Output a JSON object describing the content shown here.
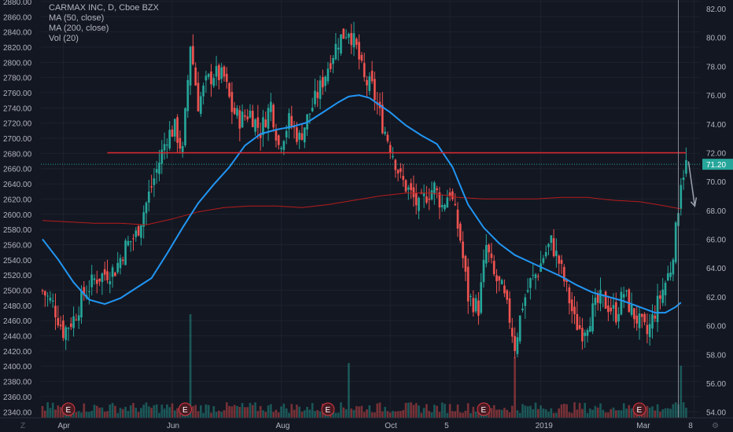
{
  "chart_data": {
    "type": "candlestick",
    "title": "CARMAX INC, D, Cboe BZX",
    "legend": [
      "MA (50, close)",
      "MA (200, close)",
      "Vol (20)"
    ],
    "left_axis": {
      "ticks": [
        "2880.00",
        "2860.00",
        "2840.00",
        "2820.00",
        "2800.00",
        "2780.00",
        "2760.00",
        "2740.00",
        "2720.00",
        "2700.00",
        "2680.00",
        "2660.00",
        "2640.00",
        "2620.00",
        "2600.00",
        "2580.00",
        "2560.00",
        "2540.00",
        "2520.00",
        "2500.00",
        "2480.00",
        "2460.00",
        "2440.00",
        "2420.00",
        "2400.00",
        "2380.00",
        "2360.00",
        "2340.00"
      ],
      "range": [
        2332,
        2882
      ]
    },
    "right_axis": {
      "ticks": [
        "82.00",
        "80.00",
        "78.00",
        "76.00",
        "74.00",
        "72.00",
        "70.00",
        "68.00",
        "66.00",
        "64.00",
        "62.00",
        "60.00",
        "58.00",
        "56.00",
        "54.00"
      ],
      "range": [
        53.6,
        82.6
      ],
      "last_price_label": "71.20",
      "last_price": 71.2
    },
    "x_axis": {
      "labels": [
        {
          "label": "Apr",
          "bar": 8
        },
        {
          "label": "Jun",
          "bar": 50
        },
        {
          "label": "Aug",
          "bar": 92
        },
        {
          "label": "Oct",
          "bar": 134
        },
        {
          "label": "5",
          "bar": 157
        },
        {
          "label": "2019",
          "bar": 192
        },
        {
          "label": "Mar",
          "bar": 231
        },
        {
          "label": "8",
          "bar": 251
        }
      ],
      "bars_shown": 252
    },
    "horizontal_line": {
      "price": 72.0,
      "color": "#e0282e"
    },
    "earnings_markers": {
      "label": "E",
      "bars": [
        10,
        55,
        110,
        170,
        230
      ]
    },
    "ohlc_close_path": [
      [
        0,
        62.4
      ],
      [
        4,
        61.5
      ],
      [
        8,
        59.6
      ],
      [
        12,
        60.5
      ],
      [
        16,
        62.2
      ],
      [
        20,
        63.2
      ],
      [
        24,
        63.6
      ],
      [
        28,
        63.9
      ],
      [
        32,
        65.5
      ],
      [
        36,
        66.3
      ],
      [
        40,
        68.5
      ],
      [
        44,
        70.8
      ],
      [
        48,
        73.2
      ],
      [
        51,
        73.7
      ],
      [
        54,
        72.0
      ],
      [
        57,
        79.6
      ],
      [
        60,
        75.4
      ],
      [
        63,
        76.8
      ],
      [
        66,
        77.5
      ],
      [
        70,
        77.2
      ],
      [
        73,
        75.0
      ],
      [
        76,
        74.3
      ],
      [
        80,
        74.8
      ],
      [
        84,
        73.5
      ],
      [
        88,
        75.4
      ],
      [
        91,
        72.5
      ],
      [
        95,
        74.2
      ],
      [
        99,
        73.0
      ],
      [
        103,
        74.8
      ],
      [
        107,
        76.5
      ],
      [
        111,
        78.5
      ],
      [
        114,
        79.8
      ],
      [
        118,
        80.6
      ],
      [
        121,
        79.2
      ],
      [
        124,
        77.0
      ],
      [
        127,
        76.5
      ],
      [
        131,
        74.0
      ],
      [
        135,
        72.0
      ],
      [
        138,
        70.2
      ],
      [
        141,
        69.4
      ],
      [
        145,
        68.2
      ],
      [
        148,
        69.1
      ],
      [
        151,
        69.6
      ],
      [
        154,
        68.3
      ],
      [
        157,
        69.4
      ],
      [
        161,
        66.0
      ],
      [
        164,
        62.0
      ],
      [
        168,
        61.2
      ],
      [
        171,
        65.5
      ],
      [
        174,
        63.4
      ],
      [
        177,
        62.5
      ],
      [
        180,
        60.5
      ],
      [
        182,
        58.6
      ],
      [
        185,
        61.5
      ],
      [
        188,
        63.0
      ],
      [
        191,
        63.8
      ],
      [
        193,
        64.8
      ],
      [
        196,
        65.8
      ],
      [
        199,
        64.4
      ],
      [
        202,
        62.5
      ],
      [
        205,
        60.3
      ],
      [
        208,
        59.6
      ],
      [
        212,
        61.0
      ],
      [
        215,
        61.8
      ],
      [
        218,
        61.4
      ],
      [
        221,
        60.8
      ],
      [
        224,
        62.3
      ],
      [
        227,
        61.0
      ],
      [
        230,
        60.2
      ],
      [
        233,
        59.4
      ],
      [
        236,
        61.0
      ],
      [
        239,
        62.5
      ],
      [
        242,
        64.0
      ],
      [
        244,
        66.5
      ],
      [
        246,
        70.2
      ],
      [
        248,
        71.2
      ]
    ],
    "ma50_path": [
      [
        0,
        66.0
      ],
      [
        6,
        64.6
      ],
      [
        12,
        63.0
      ],
      [
        18,
        61.8
      ],
      [
        24,
        61.5
      ],
      [
        30,
        61.9
      ],
      [
        36,
        62.6
      ],
      [
        42,
        63.3
      ],
      [
        48,
        65.0
      ],
      [
        54,
        66.8
      ],
      [
        60,
        68.5
      ],
      [
        66,
        69.8
      ],
      [
        72,
        71.0
      ],
      [
        78,
        72.5
      ],
      [
        84,
        73.3
      ],
      [
        90,
        73.6
      ],
      [
        96,
        73.8
      ],
      [
        102,
        74.1
      ],
      [
        108,
        74.8
      ],
      [
        114,
        75.5
      ],
      [
        118,
        75.9
      ],
      [
        122,
        76.0
      ],
      [
        126,
        75.8
      ],
      [
        130,
        75.3
      ],
      [
        134,
        74.8
      ],
      [
        140,
        73.9
      ],
      [
        146,
        73.2
      ],
      [
        152,
        72.6
      ],
      [
        158,
        71.0
      ],
      [
        164,
        68.4
      ],
      [
        170,
        66.8
      ],
      [
        176,
        65.7
      ],
      [
        182,
        64.9
      ],
      [
        188,
        64.4
      ],
      [
        194,
        63.9
      ],
      [
        200,
        63.4
      ],
      [
        206,
        62.8
      ],
      [
        212,
        62.3
      ],
      [
        218,
        62.0
      ],
      [
        224,
        61.7
      ],
      [
        230,
        61.3
      ],
      [
        236,
        60.9
      ],
      [
        240,
        60.9
      ],
      [
        244,
        61.3
      ],
      [
        246,
        61.6
      ]
    ],
    "ma200_path": [
      [
        0,
        67.3
      ],
      [
        10,
        67.2
      ],
      [
        20,
        67.1
      ],
      [
        30,
        67.1
      ],
      [
        40,
        67.0
      ],
      [
        50,
        67.4
      ],
      [
        60,
        67.9
      ],
      [
        70,
        68.2
      ],
      [
        80,
        68.3
      ],
      [
        90,
        68.3
      ],
      [
        100,
        68.2
      ],
      [
        110,
        68.4
      ],
      [
        120,
        68.7
      ],
      [
        130,
        69.0
      ],
      [
        140,
        69.2
      ],
      [
        150,
        69.2
      ],
      [
        160,
        68.9
      ],
      [
        170,
        68.8
      ],
      [
        180,
        68.8
      ],
      [
        190,
        68.8
      ],
      [
        200,
        68.9
      ],
      [
        210,
        68.9
      ],
      [
        220,
        68.7
      ],
      [
        230,
        68.6
      ],
      [
        240,
        68.3
      ],
      [
        246,
        68.1
      ]
    ],
    "colors": {
      "up": "#26a69a",
      "down": "#ef5350",
      "ma50": "#2196f3",
      "ma200": "#b71c1c",
      "background": "#131722",
      "grid": "#1e222d",
      "axis_text": "#b2b5be",
      "price_tag": "#26a69a"
    }
  }
}
